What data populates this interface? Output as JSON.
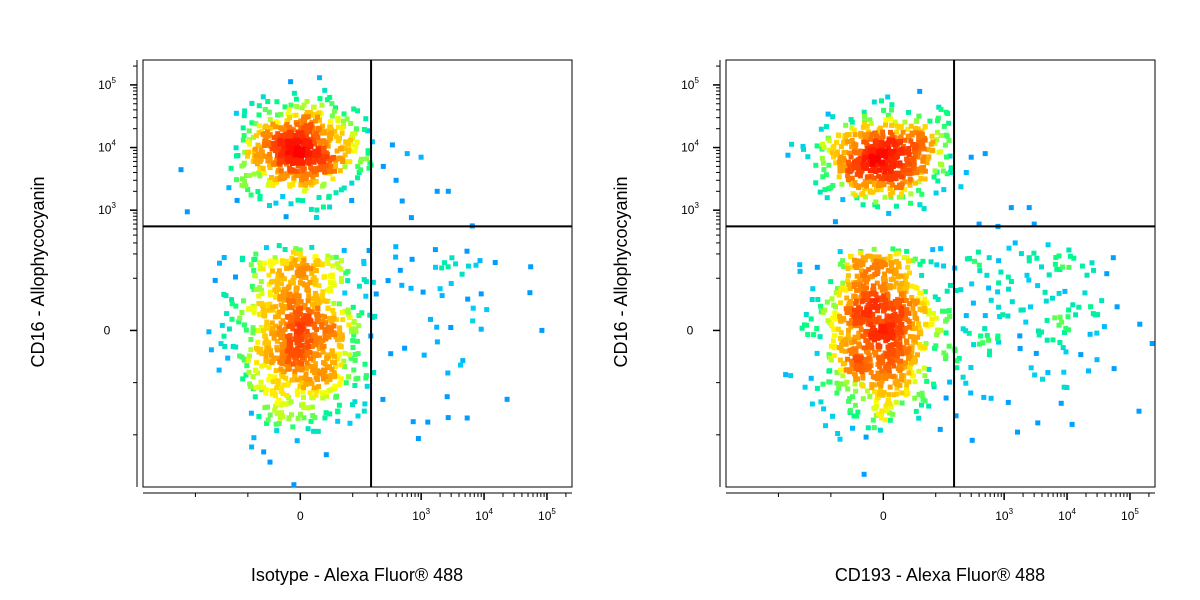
{
  "chart_data": [
    {
      "type": "scatter",
      "subtype": "flow-cytometry-density-dot-plot",
      "title": "",
      "xlabel": "Isotype - Alexa Fluor® 488",
      "ylabel": "CD16 - Allophycocyanin",
      "x_scale": "biexponential",
      "y_scale": "biexponential",
      "xlim": [
        -300,
        250000
      ],
      "ylim": [
        -300,
        250000
      ],
      "x_ticks": [
        {
          "value": 0,
          "label": "0"
        },
        {
          "value": 1000,
          "base": "10",
          "exp": "3"
        },
        {
          "value": 10000,
          "base": "10",
          "exp": "4"
        },
        {
          "value": 100000,
          "base": "10",
          "exp": "5"
        }
      ],
      "y_ticks": [
        {
          "value": 0,
          "label": "0"
        },
        {
          "value": 1000,
          "base": "10",
          "exp": "3"
        },
        {
          "value": 10000,
          "base": "10",
          "exp": "4"
        },
        {
          "value": 100000,
          "base": "10",
          "exp": "5"
        }
      ],
      "gate": {
        "x": 160,
        "y": 550
      },
      "grid": false,
      "legend": "none",
      "color_scale": [
        "#0000ff",
        "#0080ff",
        "#00c8ff",
        "#00ff80",
        "#ffff00",
        "#ff8000",
        "#ff0000"
      ],
      "populations": [
        {
          "x": 0,
          "y": 0,
          "x_sd": 60,
          "y_sd": 90,
          "n": 900
        },
        {
          "x": 0,
          "y": 9000,
          "x_sd": 55,
          "y_sd": 0.35,
          "n": 650
        },
        {
          "x": 1500,
          "y": 40,
          "x_sd": 1.1,
          "y_sd": 120,
          "n": 60
        }
      ],
      "outliers": [
        [
          600,
          8000
        ],
        [
          350,
          11000
        ],
        [
          1000,
          7000
        ],
        [
          1800,
          2000
        ],
        [
          2700,
          2000
        ],
        [
          500,
          1400
        ],
        [
          700,
          760
        ],
        [
          6500,
          560
        ],
        [
          400,
          3000
        ],
        [
          250,
          5000
        ],
        [
          5500,
          60
        ],
        [
          11000,
          40
        ],
        [
          9000,
          70
        ],
        [
          3000,
          90
        ],
        [
          2000,
          80
        ]
      ]
    },
    {
      "type": "scatter",
      "subtype": "flow-cytometry-density-dot-plot",
      "title": "",
      "xlabel": "CD193 - Alexa Fluor® 488",
      "ylabel": "CD16 - Allophycocyanin",
      "x_scale": "biexponential",
      "y_scale": "biexponential",
      "xlim": [
        -300,
        250000
      ],
      "ylim": [
        -300,
        250000
      ],
      "x_ticks": [
        {
          "value": 0,
          "label": "0"
        },
        {
          "value": 1000,
          "base": "10",
          "exp": "3"
        },
        {
          "value": 10000,
          "base": "10",
          "exp": "4"
        },
        {
          "value": 100000,
          "base": "10",
          "exp": "5"
        }
      ],
      "y_ticks": [
        {
          "value": 0,
          "label": "0"
        },
        {
          "value": 1000,
          "base": "10",
          "exp": "3"
        },
        {
          "value": 10000,
          "base": "10",
          "exp": "4"
        },
        {
          "value": 100000,
          "base": "10",
          "exp": "5"
        }
      ],
      "gate": {
        "x": 160,
        "y": 550
      },
      "grid": false,
      "legend": "none",
      "color_scale": [
        "#0000ff",
        "#0080ff",
        "#00c8ff",
        "#00ff80",
        "#ffff00",
        "#ff8000",
        "#ff0000"
      ],
      "populations": [
        {
          "x": -10,
          "y": 0,
          "x_sd": 55,
          "y_sd": 85,
          "n": 900
        },
        {
          "x": 0,
          "y": 7000,
          "x_sd": 55,
          "y_sd": 0.35,
          "n": 600
        },
        {
          "x": 1700,
          "y": 40,
          "x_sd": 0.9,
          "y_sd": 90,
          "n": 170
        }
      ],
      "outliers": [
        [
          500,
          8000
        ],
        [
          300,
          7000
        ],
        [
          1300,
          1100
        ],
        [
          2500,
          1100
        ],
        [
          3000,
          600
        ],
        [
          5000,
          280
        ],
        [
          800,
          550
        ],
        [
          400,
          600
        ],
        [
          1500,
          300
        ],
        [
          250,
          4000
        ]
      ]
    }
  ]
}
